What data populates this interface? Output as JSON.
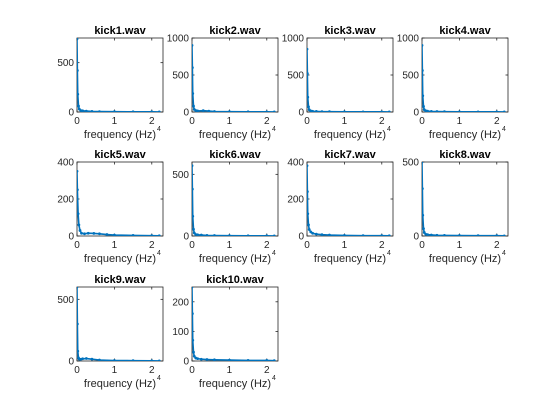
{
  "figure": {
    "background": "#ffffff",
    "axes_color": "#262626",
    "line_color": "#0072bd"
  },
  "chart_data": [
    {
      "type": "line",
      "title": "kick1.wav",
      "xlabel": "frequency (Hz)",
      "x_exponent": "4",
      "xlim": [
        0,
        2.3
      ],
      "ylim": [
        0,
        750
      ],
      "xticks": [
        0,
        1,
        2
      ],
      "yticks": [
        0,
        500
      ],
      "x": [
        0,
        0.01,
        0.02,
        0.04,
        0.06,
        0.1,
        0.15,
        0.25,
        0.4,
        0.6,
        1.0,
        1.5,
        2.0,
        2.2
      ],
      "y": [
        740,
        420,
        180,
        60,
        30,
        15,
        12,
        9,
        6,
        4,
        3,
        2,
        2,
        1
      ]
    },
    {
      "type": "line",
      "title": "kick2.wav",
      "xlabel": "frequency (Hz)",
      "x_exponent": "4",
      "xlim": [
        0,
        2.3
      ],
      "ylim": [
        0,
        1000
      ],
      "xticks": [
        0,
        1,
        2
      ],
      "yticks": [
        0,
        500,
        1000
      ],
      "x": [
        0,
        0.01,
        0.02,
        0.04,
        0.06,
        0.1,
        0.15,
        0.3,
        0.45,
        0.6,
        1.0,
        1.5,
        2.0,
        2.2
      ],
      "y": [
        900,
        600,
        250,
        80,
        35,
        20,
        15,
        18,
        12,
        6,
        4,
        3,
        2,
        1
      ]
    },
    {
      "type": "line",
      "title": "kick3.wav",
      "xlabel": "frequency (Hz)",
      "x_exponent": "4",
      "xlim": [
        0,
        2.3
      ],
      "ylim": [
        0,
        1000
      ],
      "xticks": [
        0,
        1,
        2
      ],
      "yticks": [
        0,
        500,
        1000
      ],
      "x": [
        0,
        0.01,
        0.02,
        0.04,
        0.06,
        0.1,
        0.15,
        0.25,
        0.4,
        0.6,
        1.0,
        1.5,
        2.0,
        2.2
      ],
      "y": [
        850,
        520,
        200,
        70,
        30,
        15,
        10,
        8,
        5,
        4,
        3,
        2,
        2,
        1
      ]
    },
    {
      "type": "line",
      "title": "kick4.wav",
      "xlabel": "frequency (Hz)",
      "x_exponent": "4",
      "xlim": [
        0,
        2.3
      ],
      "ylim": [
        0,
        1000
      ],
      "xticks": [
        0,
        1,
        2
      ],
      "yticks": [
        0,
        500,
        1000
      ],
      "x": [
        0,
        0.01,
        0.02,
        0.04,
        0.06,
        0.1,
        0.15,
        0.25,
        0.4,
        0.6,
        1.0,
        1.5,
        2.0,
        2.2
      ],
      "y": [
        900,
        560,
        220,
        75,
        32,
        16,
        11,
        8,
        6,
        4,
        3,
        2,
        2,
        1
      ]
    },
    {
      "type": "line",
      "title": "kick5.wav",
      "xlabel": "frequency (Hz)",
      "x_exponent": "4",
      "xlim": [
        0,
        2.3
      ],
      "ylim": [
        0,
        400
      ],
      "xticks": [
        0,
        1,
        2
      ],
      "yticks": [
        0,
        200,
        400
      ],
      "x": [
        0,
        0.01,
        0.03,
        0.05,
        0.08,
        0.12,
        0.2,
        0.3,
        0.45,
        0.6,
        0.8,
        1.0,
        1.5,
        2.0,
        2.2
      ],
      "y": [
        350,
        250,
        120,
        60,
        30,
        15,
        12,
        15,
        14,
        12,
        8,
        5,
        3,
        2,
        1
      ]
    },
    {
      "type": "line",
      "title": "kick6.wav",
      "xlabel": "frequency (Hz)",
      "x_exponent": "4",
      "xlim": [
        0,
        2.3
      ],
      "ylim": [
        0,
        600
      ],
      "xticks": [
        0,
        1,
        2
      ],
      "yticks": [
        0,
        500
      ],
      "x": [
        0,
        0.01,
        0.02,
        0.04,
        0.06,
        0.1,
        0.15,
        0.25,
        0.4,
        0.6,
        1.0,
        1.5,
        2.0,
        2.2
      ],
      "y": [
        570,
        380,
        160,
        55,
        25,
        12,
        10,
        8,
        5,
        4,
        3,
        2,
        2,
        1
      ]
    },
    {
      "type": "line",
      "title": "kick7.wav",
      "xlabel": "frequency (Hz)",
      "x_exponent": "4",
      "xlim": [
        0,
        2.3
      ],
      "ylim": [
        0,
        400
      ],
      "xticks": [
        0,
        1,
        2
      ],
      "yticks": [
        0,
        200,
        400
      ],
      "x": [
        0,
        0.01,
        0.02,
        0.04,
        0.06,
        0.1,
        0.15,
        0.25,
        0.4,
        0.6,
        1.0,
        1.5,
        2.0,
        2.2
      ],
      "y": [
        380,
        240,
        120,
        60,
        35,
        22,
        15,
        10,
        7,
        5,
        3,
        2,
        2,
        1
      ]
    },
    {
      "type": "line",
      "title": "kick8.wav",
      "xlabel": "frequency (Hz)",
      "x_exponent": "4",
      "xlim": [
        0,
        2.3
      ],
      "ylim": [
        0,
        500
      ],
      "xticks": [
        0,
        1,
        2
      ],
      "yticks": [
        0,
        500
      ],
      "x": [
        0,
        0.01,
        0.02,
        0.04,
        0.06,
        0.1,
        0.15,
        0.25,
        0.4,
        0.6,
        1.0,
        1.5,
        2.0,
        2.2
      ],
      "y": [
        500,
        320,
        140,
        50,
        24,
        12,
        9,
        7,
        5,
        4,
        3,
        2,
        2,
        1
      ]
    },
    {
      "type": "line",
      "title": "kick9.wav",
      "xlabel": "frequency (Hz)",
      "x_exponent": "4",
      "xlim": [
        0,
        2.3
      ],
      "ylim": [
        0,
        600
      ],
      "xticks": [
        0,
        1,
        2
      ],
      "yticks": [
        0,
        500
      ],
      "x": [
        0,
        0.01,
        0.02,
        0.04,
        0.06,
        0.1,
        0.15,
        0.25,
        0.4,
        0.6,
        1.0,
        1.5,
        2.0,
        2.2
      ],
      "y": [
        600,
        300,
        80,
        25,
        15,
        14,
        18,
        20,
        15,
        8,
        4,
        3,
        2,
        1
      ]
    },
    {
      "type": "line",
      "title": "kick10.wav",
      "xlabel": "frequency (Hz)",
      "x_exponent": "4",
      "xlim": [
        0,
        2.3
      ],
      "ylim": [
        0,
        250
      ],
      "xticks": [
        0,
        1,
        2
      ],
      "yticks": [
        0,
        100,
        200
      ],
      "x": [
        0,
        0.01,
        0.02,
        0.04,
        0.06,
        0.1,
        0.15,
        0.25,
        0.4,
        0.6,
        1.0,
        1.5,
        2.0,
        2.2
      ],
      "y": [
        250,
        160,
        70,
        30,
        16,
        10,
        8,
        6,
        5,
        4,
        3,
        2,
        2,
        1
      ]
    }
  ]
}
